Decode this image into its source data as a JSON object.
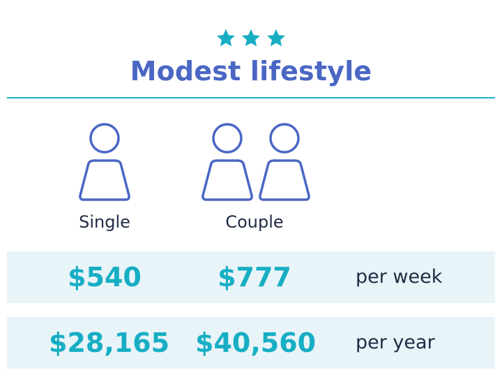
{
  "rating": {
    "stars": 3,
    "icon": "star-icon",
    "color": "#17aec4"
  },
  "title": "Modest lifestyle",
  "columns": {
    "single": {
      "label": "Single",
      "icon": "person-icon"
    },
    "couple": {
      "label": "Couple",
      "icon": "two-people-icon"
    }
  },
  "rows": {
    "week": {
      "single": "$540",
      "couple": "$777",
      "period": "per week"
    },
    "year": {
      "single": "$28,165",
      "couple": "$40,560",
      "period": "per year"
    }
  },
  "colors": {
    "title": "#4a67c4",
    "accent": "#17aec4",
    "row_background": "#e8f4f8",
    "text": "#1f2a44"
  }
}
